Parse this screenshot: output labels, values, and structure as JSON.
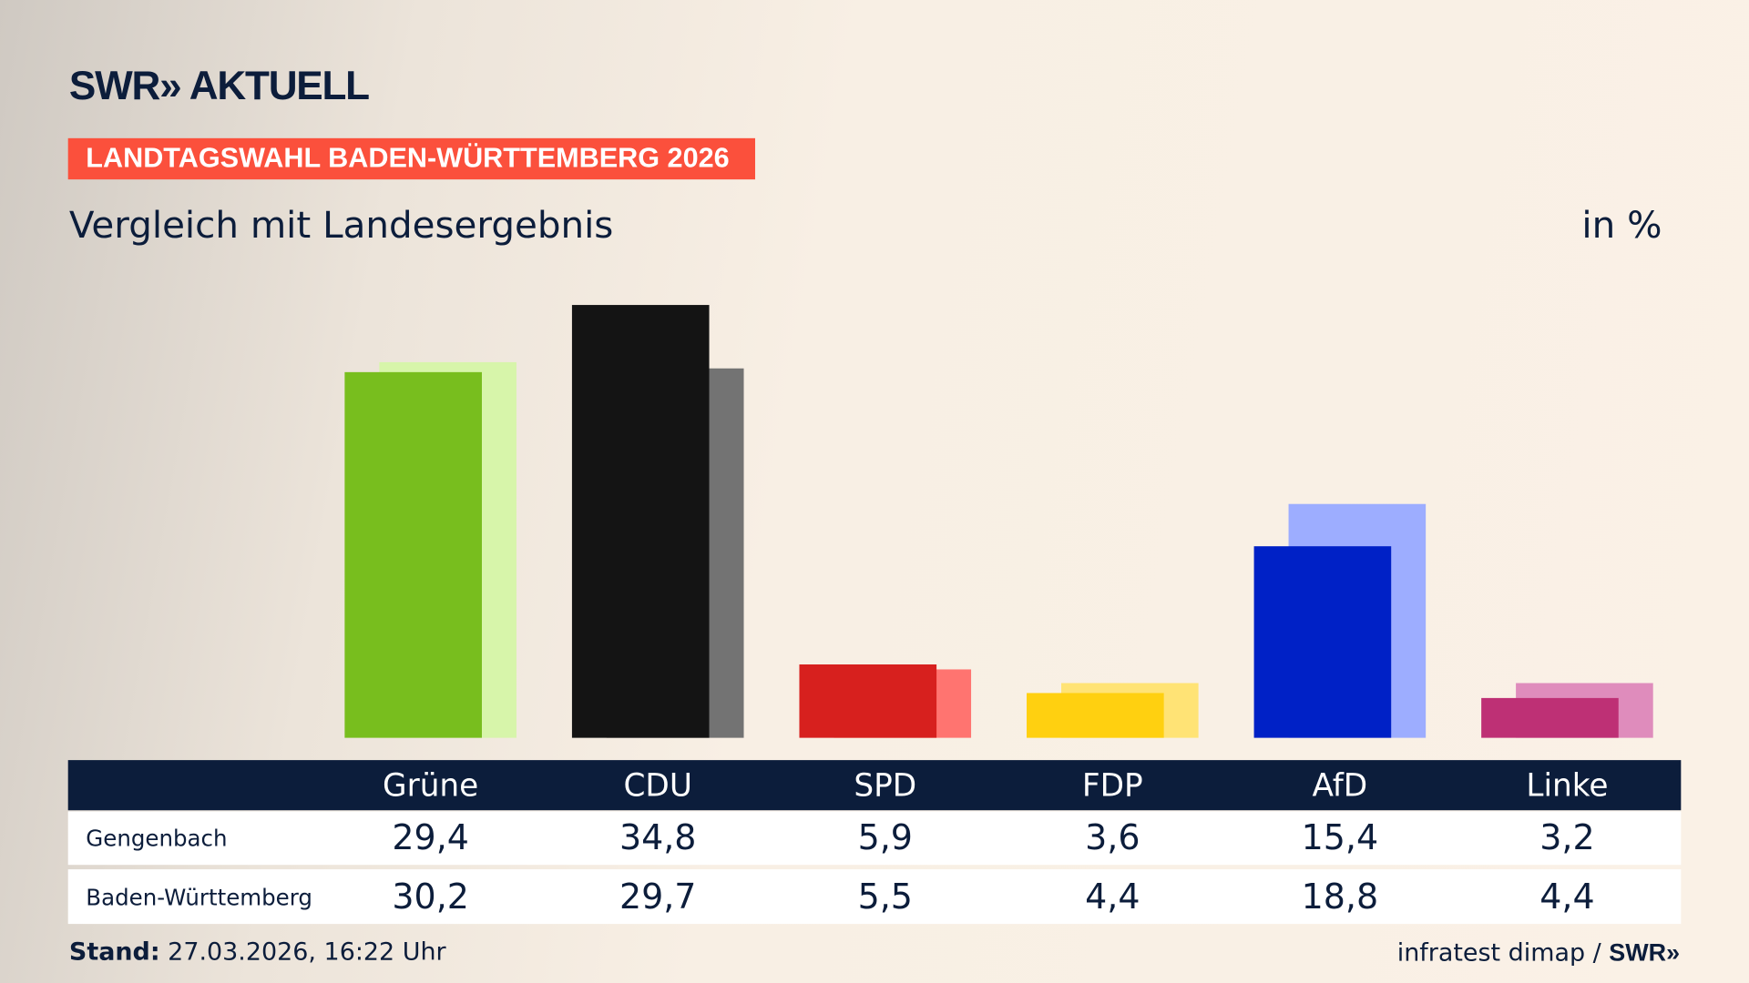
{
  "header": {
    "logo": "SWR» AKTUELL",
    "tag": "LANDTAGSWAHL BADEN-WÜRTTEMBERG 2026",
    "subtitle": "Vergleich mit Landesergebnis",
    "unit": "in %"
  },
  "footer": {
    "stand_label": "Stand:",
    "stand_value": " 27.03.2026, 16:22 Uhr",
    "source": "infratest dimap / ",
    "source_logo": "SWR»"
  },
  "chart_data": {
    "type": "bar",
    "categories": [
      "Grüne",
      "CDU",
      "SPD",
      "FDP",
      "AfD",
      "Linke"
    ],
    "series": [
      {
        "name": "Gengenbach",
        "values": [
          29.4,
          34.8,
          5.9,
          3.6,
          15.4,
          3.2
        ]
      },
      {
        "name": "Baden-Württemberg",
        "values": [
          30.2,
          29.7,
          5.5,
          4.4,
          18.8,
          4.4
        ]
      }
    ],
    "value_labels": [
      [
        "29,4",
        "34,8",
        "5,9",
        "3,6",
        "15,4",
        "3,2"
      ],
      [
        "30,2",
        "29,7",
        "5,5",
        "4,4",
        "18,8",
        "4,4"
      ]
    ],
    "colors": [
      [
        "#78be1e",
        "#141414",
        "#d7201e",
        "#ffd010",
        "#0021c6",
        "#be3075"
      ],
      [
        "#d7f5aa",
        "#737373",
        "#ff7470",
        "#ffe375",
        "#9dadff",
        "#df8cbc"
      ]
    ],
    "ylim": [
      0,
      35
    ],
    "grid": false
  }
}
